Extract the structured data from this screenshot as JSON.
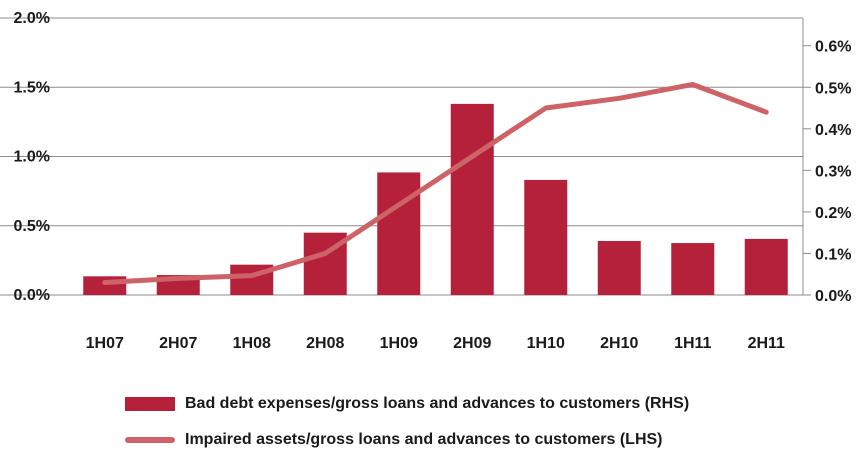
{
  "chart_data": {
    "type": "bar",
    "categories": [
      "1H07",
      "2H07",
      "1H08",
      "2H08",
      "1H09",
      "2H09",
      "1H10",
      "2H10",
      "1H11",
      "2H11"
    ],
    "series": [
      {
        "name": "Bad debt expenses/gross loans and advances to customers (RHS)",
        "type": "bar",
        "axis": "right",
        "color": "#b5203a",
        "values": [
          0.045,
          0.048,
          0.073,
          0.15,
          0.295,
          0.46,
          0.277,
          0.13,
          0.125,
          0.135
        ]
      },
      {
        "name": "Impaired assets/gross loans and advances to customers (LHS)",
        "type": "line",
        "axis": "left",
        "color": "#cd6366",
        "values": [
          0.09,
          0.12,
          0.14,
          0.3,
          0.65,
          1.0,
          1.35,
          1.42,
          1.52,
          1.32
        ]
      }
    ],
    "y_left": {
      "min": 0,
      "max": 2.0,
      "ticks": [
        "0.0%",
        "0.5%",
        "1.0%",
        "1.5%",
        "2.0%"
      ]
    },
    "y_right": {
      "min": 0,
      "max": 0.6667,
      "ticks": [
        "0.0%",
        "0.1%",
        "0.2%",
        "0.3%",
        "0.4%",
        "0.5%",
        "0.6%"
      ]
    },
    "grid": true,
    "legend_position": "bottom"
  }
}
